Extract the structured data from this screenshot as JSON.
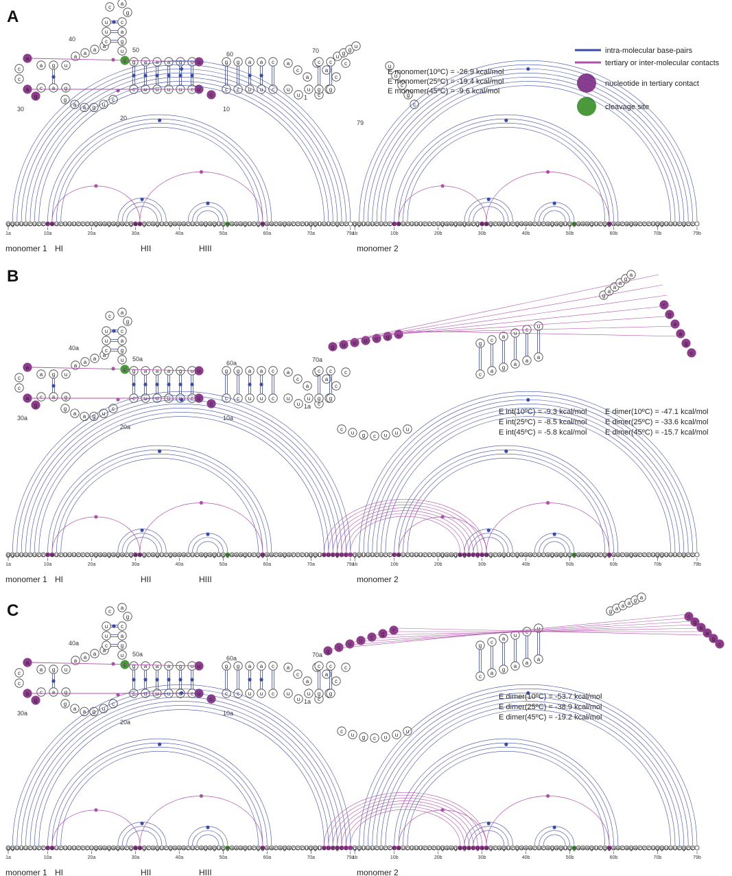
{
  "legend": {
    "intra": "intra-molecular base-pairs",
    "tertiary": "tertiary or inter-molecular contacts",
    "tertiary_nuc": "nucleotide in tertiary contact",
    "cleavage": "cleavage site",
    "colors": {
      "intra": "#3a4aa8",
      "tertiary": "#b04fa8",
      "nuc_tertiary": "#8e3c8c",
      "cleavage": "#4a9a3c"
    }
  },
  "panels": [
    {
      "letter": "A",
      "energies": [
        "E monomer(10ºC) =  -26.9 kcal/mol",
        "E monomer(25ºC) =  -19.4 kcal/mol",
        "E monomer(45ºC) =   -9.6 kcal/mol"
      ],
      "sequence": "gguuucucccaucuuucccugaagagacgaagcagucgaaacucagaguggaaagucggaacagacccugguuucgcc",
      "axis_ticks": [
        "1a",
        "10a",
        "20a",
        "30a",
        "40a",
        "50a",
        "60a",
        "70a",
        "79a",
        "1b",
        "10b",
        "20b",
        "30b",
        "40b",
        "50b",
        "60b",
        "70b",
        "79b"
      ],
      "bottom_labels": [
        "monomer 1",
        "HI",
        "HII",
        "HIII",
        "monomer 2"
      ],
      "struct_labels": [
        "40",
        "50",
        "60",
        "70",
        "30",
        "20",
        "10",
        "1",
        "79"
      ]
    },
    {
      "letter": "B",
      "energies": [
        "E int(10ºC) =  -9.3 kcal/mol",
        "E int(25ºC) =  -8.5 kcal/mol",
        "E int(45ºC) =  -5.8 kcal/mol",
        "E dimer(10ºC) =  -47.1 kcal/mol",
        "E dimer(25ºC) =  -33.6 kcal/mol",
        "E dimer(45ºC) =  -15.7 kcal/mol"
      ],
      "axis_ticks": [
        "1a",
        "10a",
        "20a",
        "30a",
        "40a",
        "50a",
        "60a",
        "70a",
        "79a",
        "1b",
        "10b",
        "20b",
        "30b",
        "40b",
        "50b",
        "60b",
        "70b",
        "79b"
      ],
      "bottom_labels": [
        "monomer 1",
        "HI",
        "HII",
        "HIII",
        "monomer 2"
      ],
      "struct_labels": [
        "40a",
        "50a",
        "60a",
        "70a",
        "30a",
        "20a",
        "10a",
        "1a",
        "79a",
        "1b",
        "10b",
        "20b",
        "30b",
        "40b",
        "50b",
        "60b",
        "70b",
        "79b"
      ]
    },
    {
      "letter": "C",
      "energies": [
        "E dimer(10ºC) =  -53.7 kcal/mol",
        "E dimer(25ºC) =  -38.9 kcal/mol",
        "E dimer(45ºC) =  -19.2 kcal/mol"
      ],
      "axis_ticks": [
        "1a",
        "10a",
        "20a",
        "30a",
        "40a",
        "50a",
        "60a",
        "70a",
        "79a",
        "1b",
        "10b",
        "20b",
        "30b",
        "40b",
        "50b",
        "60b",
        "70b",
        "79b"
      ],
      "bottom_labels": [
        "monomer 1",
        "HI",
        "HII",
        "HIII",
        "monomer 2"
      ],
      "struct_labels": [
        "40a",
        "50a",
        "60a",
        "70a",
        "30a",
        "20a",
        "10a",
        "1a",
        "79a",
        "1b",
        "10b",
        "20b",
        "30b",
        "40b",
        "50b",
        "60b",
        "70b",
        "79b"
      ]
    }
  ]
}
